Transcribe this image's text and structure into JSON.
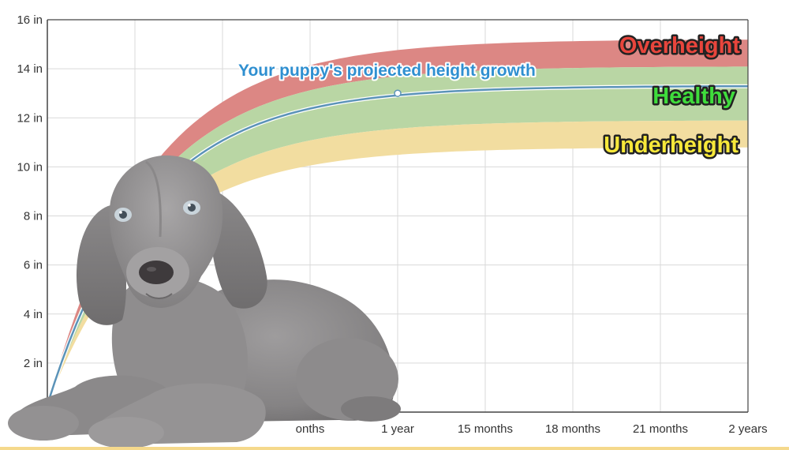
{
  "chart_data": {
    "type": "area",
    "x_unit": "months",
    "xlim": [
      0,
      24
    ],
    "ylim": [
      0,
      16
    ],
    "y_ticks": [
      {
        "value": 2,
        "label": "2 in"
      },
      {
        "value": 4,
        "label": "4 in"
      },
      {
        "value": 6,
        "label": "6 in"
      },
      {
        "value": 8,
        "label": "8 in"
      },
      {
        "value": 10,
        "label": "10 in"
      },
      {
        "value": 12,
        "label": "12 in"
      },
      {
        "value": 14,
        "label": "14 in"
      },
      {
        "value": 16,
        "label": "16 in"
      }
    ],
    "x_ticks": [
      {
        "value": 9,
        "label": "onths"
      },
      {
        "value": 12,
        "label": "1 year"
      },
      {
        "value": 15,
        "label": "15 months"
      },
      {
        "value": 18,
        "label": "18 months"
      },
      {
        "value": 21,
        "label": "21 months"
      },
      {
        "value": 24,
        "label": "2 years"
      }
    ],
    "grid": true,
    "bands": [
      {
        "label": "Overheight",
        "lower": 14.1,
        "upper": 15.2,
        "fill": "#dc8784",
        "text_color": "#e8453c"
      },
      {
        "label": "Healthy",
        "lower": 11.9,
        "upper": 14.1,
        "fill": "#b9d6a4",
        "text_color": "#3fdc3c"
      },
      {
        "label": "Underheight",
        "lower": 10.8,
        "upper": 11.9,
        "fill": "#f2dda0",
        "text_color": "#f7e83a"
      }
    ],
    "series": [
      {
        "name": "Your puppy's projected height growth",
        "final": 13.3,
        "color": "#5b93b8",
        "x": [
          0,
          1,
          2,
          3,
          4,
          5,
          6,
          7,
          8,
          9,
          10,
          11,
          12,
          13,
          14,
          15,
          16,
          17,
          18,
          19,
          20,
          21,
          22,
          23,
          24
        ],
        "values": [
          0.3,
          3.5,
          5.8,
          7.7,
          9.2,
          10.3,
          11.2,
          11.8,
          12.3,
          12.6,
          12.8,
          12.9,
          13.0,
          13.05,
          13.1,
          13.15,
          13.2,
          13.22,
          13.25,
          13.26,
          13.27,
          13.28,
          13.29,
          13.3,
          13.3
        ],
        "marker": {
          "x": 12,
          "y": 13.0
        }
      }
    ]
  },
  "colors": {
    "axis": "#444444",
    "grid": "#d9d9d9",
    "bottom_strip": "#f5d98c"
  },
  "image": {
    "icon": "weimaraner-puppy-photo"
  }
}
